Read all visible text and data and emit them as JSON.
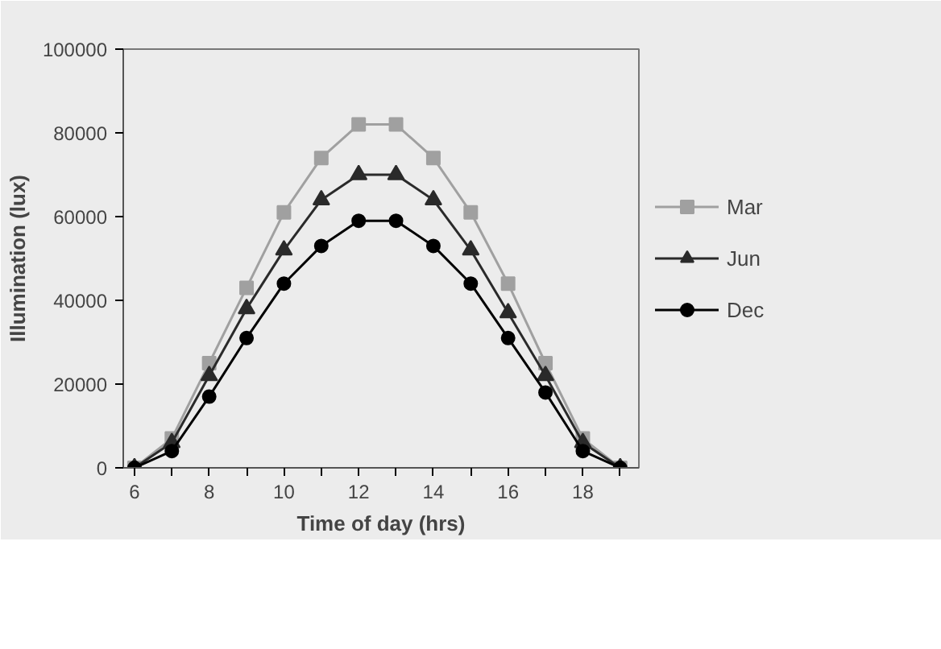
{
  "chart_data": {
    "type": "line",
    "xlabel": "Time of day (hrs)",
    "ylabel": "Illumination (lux)",
    "x": [
      6,
      7,
      8,
      9,
      10,
      11,
      12,
      13,
      14,
      15,
      16,
      17,
      18,
      19
    ],
    "series": [
      {
        "name": "Mar",
        "color": "#a0a0a0",
        "marker": "square",
        "values": [
          0,
          7000,
          25000,
          43000,
          61000,
          74000,
          82000,
          82000,
          74000,
          61000,
          44000,
          25000,
          7000,
          0
        ]
      },
      {
        "name": "Jun",
        "color": "#2a2a2a",
        "marker": "triangle",
        "values": [
          0,
          6000,
          22000,
          38000,
          52000,
          64000,
          70000,
          70000,
          64000,
          52000,
          37000,
          22000,
          6000,
          0
        ]
      },
      {
        "name": "Dec",
        "color": "#000000",
        "marker": "circle",
        "values": [
          0,
          4000,
          17000,
          31000,
          44000,
          53000,
          59000,
          59000,
          53000,
          44000,
          31000,
          18000,
          4000,
          0
        ]
      }
    ],
    "xlim": [
      5.7,
      19.5
    ],
    "ylim": [
      0,
      100000
    ],
    "xticks": [
      6,
      {
        "value": 7,
        "label": null
      },
      8,
      {
        "value": 9,
        "label": null
      },
      10,
      {
        "value": 11,
        "label": null
      },
      12,
      {
        "value": 13,
        "label": null
      },
      14,
      {
        "value": 15,
        "label": null
      },
      16,
      {
        "value": 17,
        "label": null
      },
      18,
      {
        "value": 19,
        "label": null
      }
    ],
    "yticks": [
      0,
      20000,
      40000,
      60000,
      80000,
      100000
    ],
    "grid": false,
    "legend": "right"
  }
}
